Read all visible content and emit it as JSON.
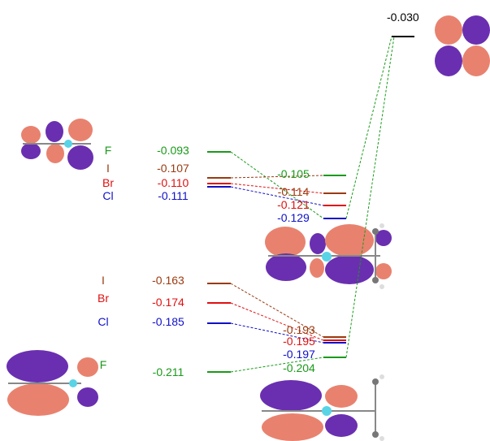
{
  "colors": {
    "F": "#1a9a1a",
    "I": "#9a3a10",
    "Br": "#e01010",
    "Cl": "#1010c8",
    "ref": "#000000",
    "lobe_pink": "#e8826f",
    "lobe_purple": "#6a2fb0",
    "atom_cyan": "#59d4e6"
  },
  "upper_left": {
    "halogens": [
      "F",
      "I",
      "Br",
      "Cl"
    ],
    "energies": [
      "-0.093",
      "-0.107",
      "-0.110",
      "-0.111"
    ]
  },
  "upper_right": {
    "energies": [
      "-0.105",
      "-0.114",
      "-0.121",
      "-0.129"
    ]
  },
  "lower_left": {
    "halogens": [
      "I",
      "Br",
      "Cl",
      "F"
    ],
    "energies": [
      "-0.163",
      "-0.174",
      "-0.185",
      "-0.211"
    ]
  },
  "lower_right": {
    "energies": [
      "-0.193",
      "-0.195",
      "-0.197",
      "-0.204"
    ]
  },
  "reference": {
    "energy": "-0.030"
  },
  "orbital_images": [
    "p-orbital-top-right",
    "upper-left-orbital",
    "upper-right-orbital",
    "lower-left-orbital",
    "lower-right-orbital"
  ]
}
